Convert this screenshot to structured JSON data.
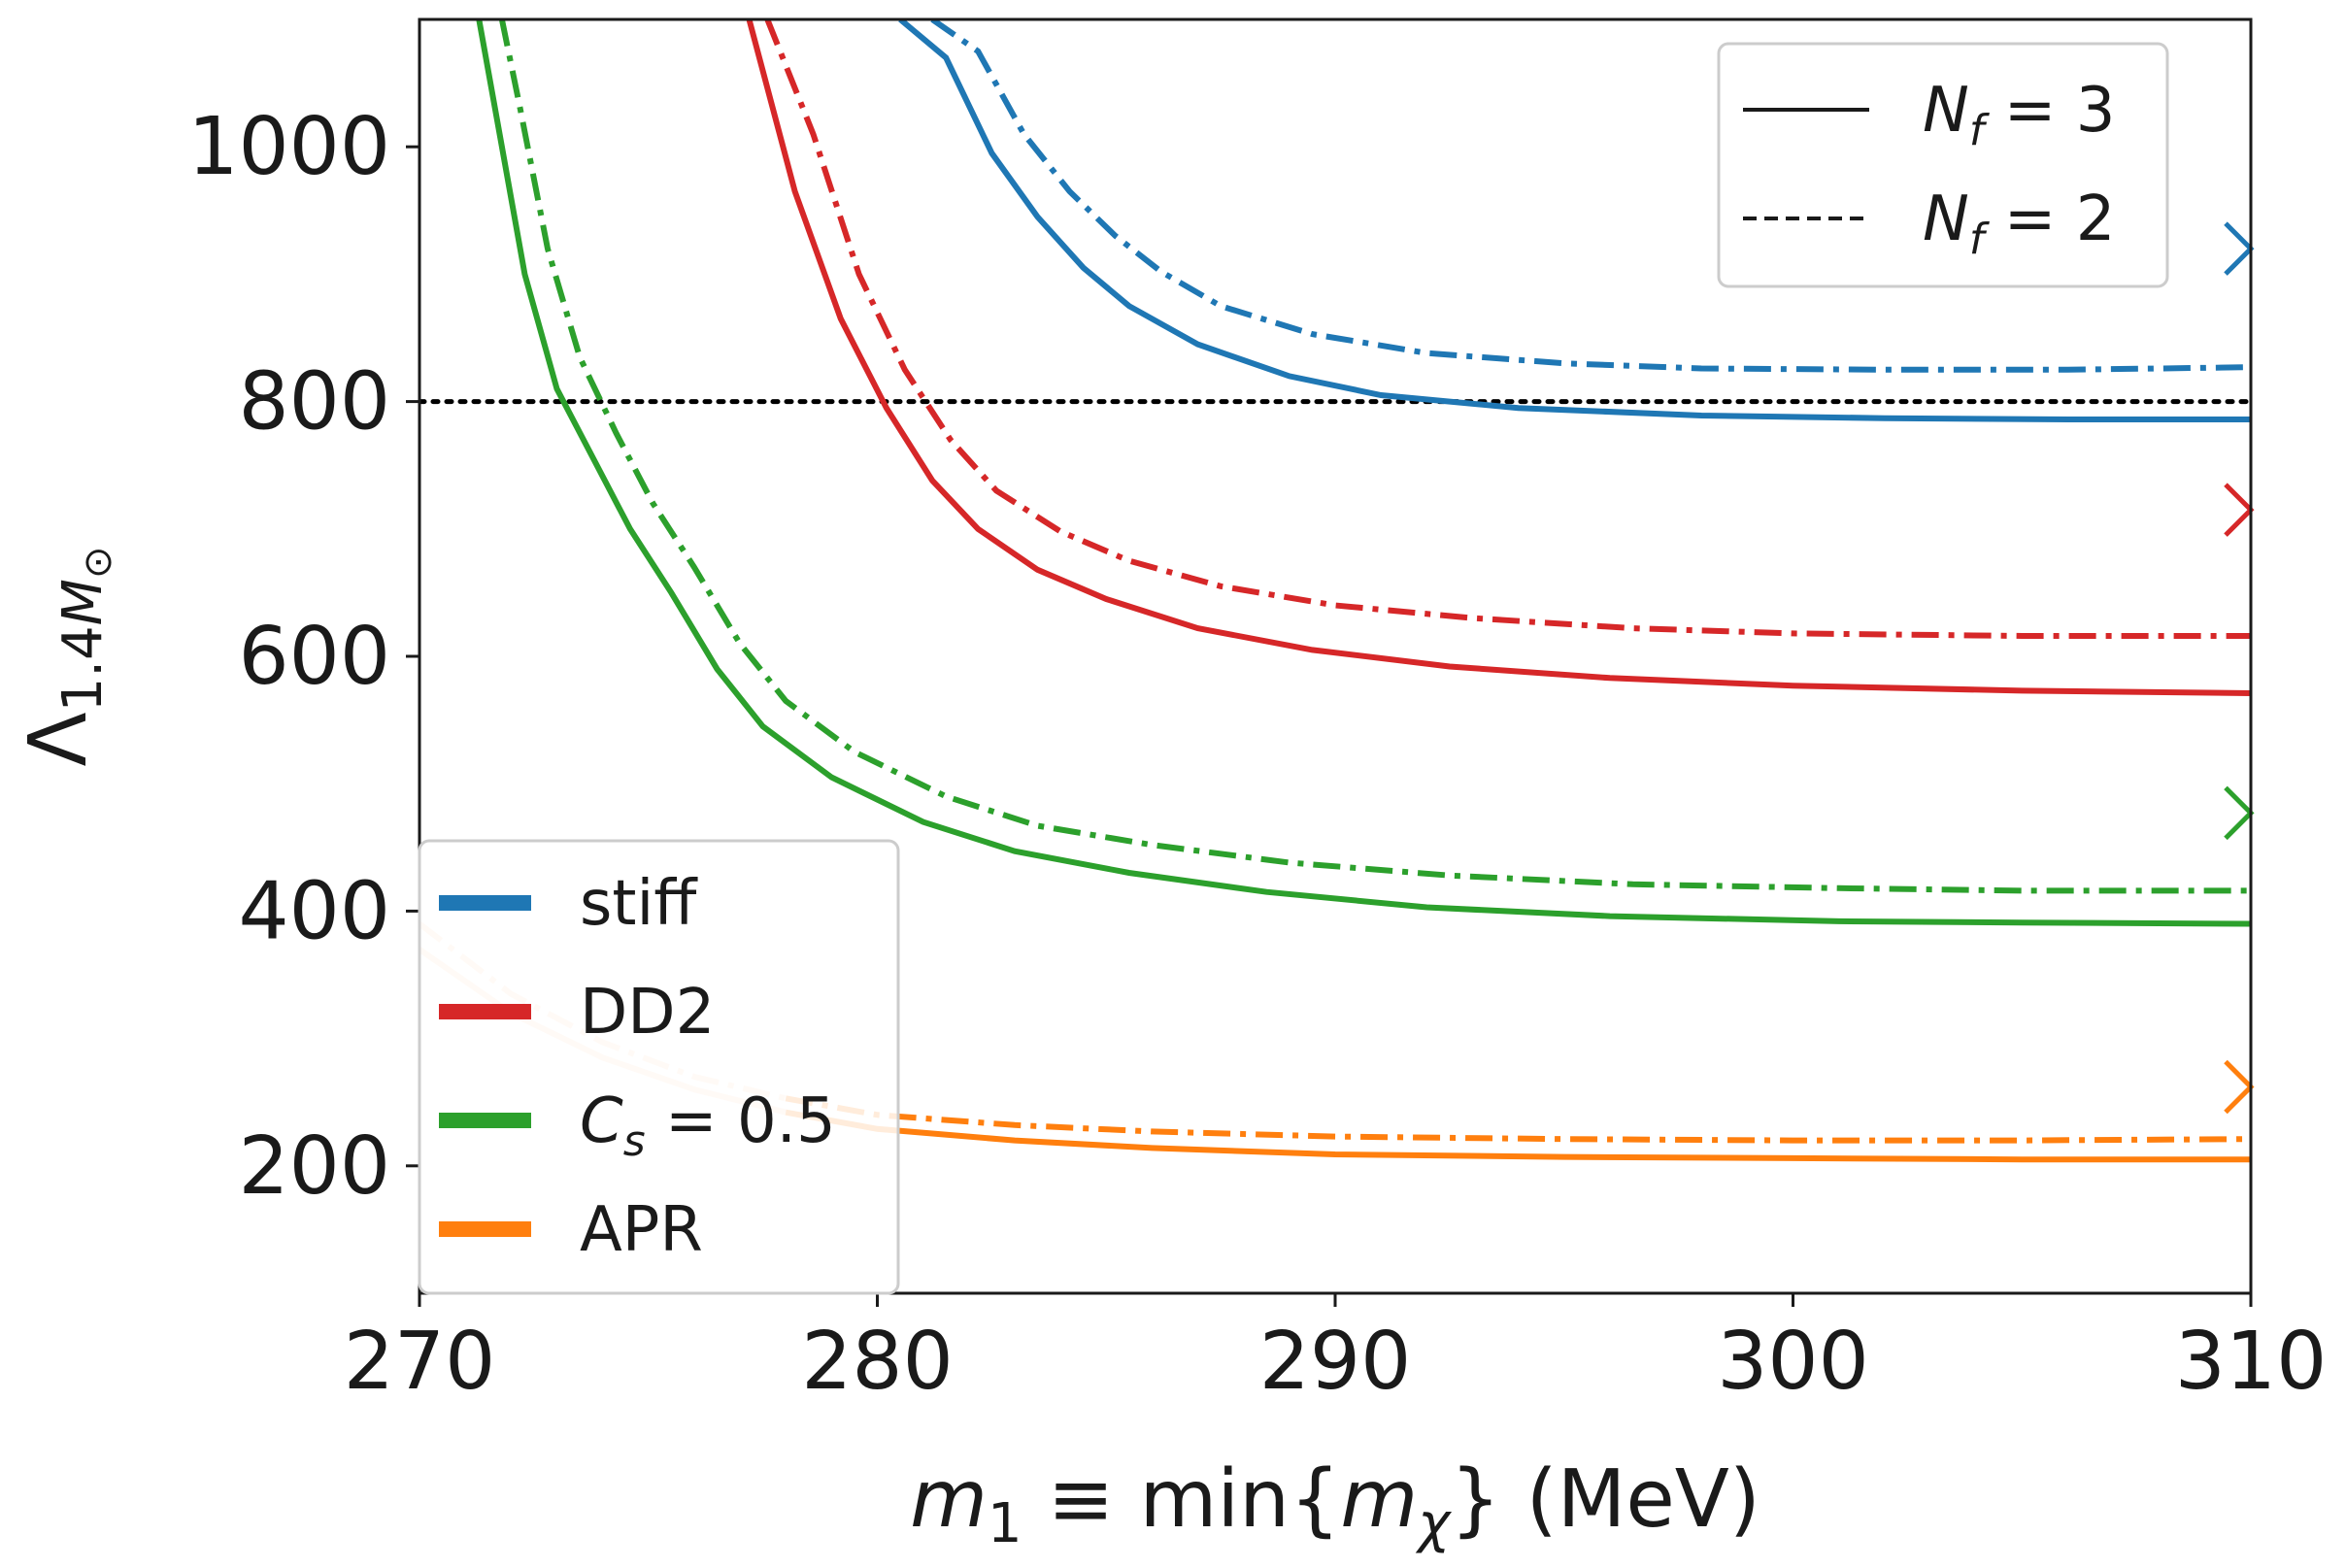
{
  "chart_data": {
    "type": "line",
    "title": "",
    "xlabel_parts": {
      "m": "m",
      "m_sub": "1",
      "rel": " ≡ min{",
      "m2": "m",
      "m2_sub": "χ",
      "close": "}",
      "units": " (MeV)"
    },
    "ylabel_parts": {
      "lambda": "Λ",
      "sub": "1.4",
      "sub_m": "M",
      "sub_sun": "⊙"
    },
    "xlim": [
      270,
      310
    ],
    "ylim": [
      100,
      1100
    ],
    "xticks": [
      270,
      280,
      290,
      300,
      310
    ],
    "yticks": [
      200,
      400,
      600,
      800,
      1000
    ],
    "reference_line": {
      "y": 800,
      "style": "dotted",
      "color": "#000000"
    },
    "style_legend": [
      {
        "id": "nf3",
        "symbol": "N",
        "sub": "f",
        "text": " = 3",
        "dash": "solid"
      },
      {
        "id": "nf2",
        "symbol": "N",
        "sub": "f",
        "text": " = 2",
        "dash": "dashed"
      }
    ],
    "series": [
      {
        "name": "stiff",
        "color": "#1f77b4",
        "marker_x_y": 920,
        "nf3": {
          "x": [
            280.5,
            281.5,
            282.5,
            283.5,
            284.5,
            285.5,
            287,
            289,
            291,
            294,
            298,
            302,
            306,
            310
          ],
          "y": [
            1100,
            1070,
            995,
            945,
            905,
            875,
            845,
            820,
            805,
            795,
            789,
            787,
            786,
            786
          ]
        },
        "nf2": {
          "x": [
            281.2,
            282.2,
            283.2,
            284.2,
            285.2,
            286.2,
            287.5,
            289.5,
            292,
            295,
            298,
            302,
            306,
            310
          ],
          "y": [
            1100,
            1075,
            1010,
            965,
            930,
            902,
            875,
            853,
            838,
            830,
            826,
            825,
            825,
            827
          ]
        }
      },
      {
        "name": "DD2",
        "color": "#d62728",
        "marker_x_y": 715,
        "nf3": {
          "x": [
            277.2,
            278.2,
            279.2,
            280.2,
            281.2,
            282.2,
            283.5,
            285,
            287,
            289.5,
            292.5,
            296,
            300,
            305,
            310
          ],
          "y": [
            1100,
            965,
            865,
            795,
            738,
            700,
            668,
            645,
            622,
            605,
            592,
            583,
            577,
            573,
            571
          ]
        },
        "nf2": {
          "x": [
            277.6,
            278.6,
            279.6,
            280.6,
            281.6,
            282.6,
            284,
            285.5,
            287.5,
            290,
            293,
            296.5,
            300,
            305,
            310
          ],
          "y": [
            1100,
            1010,
            900,
            825,
            770,
            730,
            698,
            675,
            655,
            640,
            630,
            622,
            618,
            616,
            616
          ]
        }
      },
      {
        "name": "C_s = 0.5",
        "label_parts": {
          "symbol": "C",
          "sub": "s",
          "text": " = 0.5"
        },
        "color": "#2ca02c",
        "marker_x_y": 477,
        "nf3": {
          "x": [
            271.3,
            271.7,
            272.3,
            273,
            273.8,
            274.6,
            275.5,
            276.5,
            277.5,
            279,
            281,
            283,
            285.5,
            288.5,
            292,
            296,
            301,
            305,
            310
          ],
          "y": [
            1100,
            1020,
            900,
            810,
            755,
            700,
            650,
            590,
            545,
            505,
            470,
            447,
            430,
            415,
            403,
            396,
            392,
            391,
            390
          ]
        },
        "nf2": {
          "x": [
            271.8,
            272.2,
            272.8,
            273.5,
            274.3,
            275.1,
            276,
            277,
            278,
            279.5,
            281.5,
            283.5,
            286,
            289,
            292.5,
            296.5,
            301,
            305,
            310
          ],
          "y": [
            1100,
            1030,
            920,
            835,
            775,
            720,
            670,
            610,
            565,
            525,
            490,
            467,
            452,
            438,
            428,
            421,
            418,
            416,
            416
          ]
        }
      },
      {
        "name": "APR",
        "color": "#ff7f0e",
        "color_faded": "#fdd9bf",
        "faded_until_x": 279.5,
        "marker_x_y": 262,
        "nf3": {
          "x": [
            270,
            272,
            274,
            276,
            278,
            280,
            283,
            286,
            290,
            295,
            300,
            305,
            310
          ],
          "y": [
            370,
            320,
            285,
            260,
            242,
            229,
            220,
            214,
            209,
            207,
            206,
            205,
            205
          ]
        },
        "nf2": {
          "x": [
            270,
            272,
            274,
            276,
            278,
            280,
            283,
            286,
            290,
            295,
            300,
            305,
            310
          ],
          "y": [
            390,
            335,
            297,
            270,
            253,
            240,
            232,
            227,
            223,
            221,
            220,
            220,
            221
          ]
        }
      }
    ],
    "legend_color": [
      {
        "name": "stiff",
        "color": "#1f77b4"
      },
      {
        "name": "DD2",
        "color": "#d62728"
      },
      {
        "name": "C_s = 0.5",
        "color": "#2ca02c"
      },
      {
        "name": "APR",
        "color": "#ff7f0e"
      }
    ],
    "legend_text": {
      "stiff": "stiff",
      "dd2": "DD2",
      "cs_symbol": "C",
      "cs_sub": "s",
      "cs_text": " = 0.5",
      "apr": "APR"
    }
  }
}
